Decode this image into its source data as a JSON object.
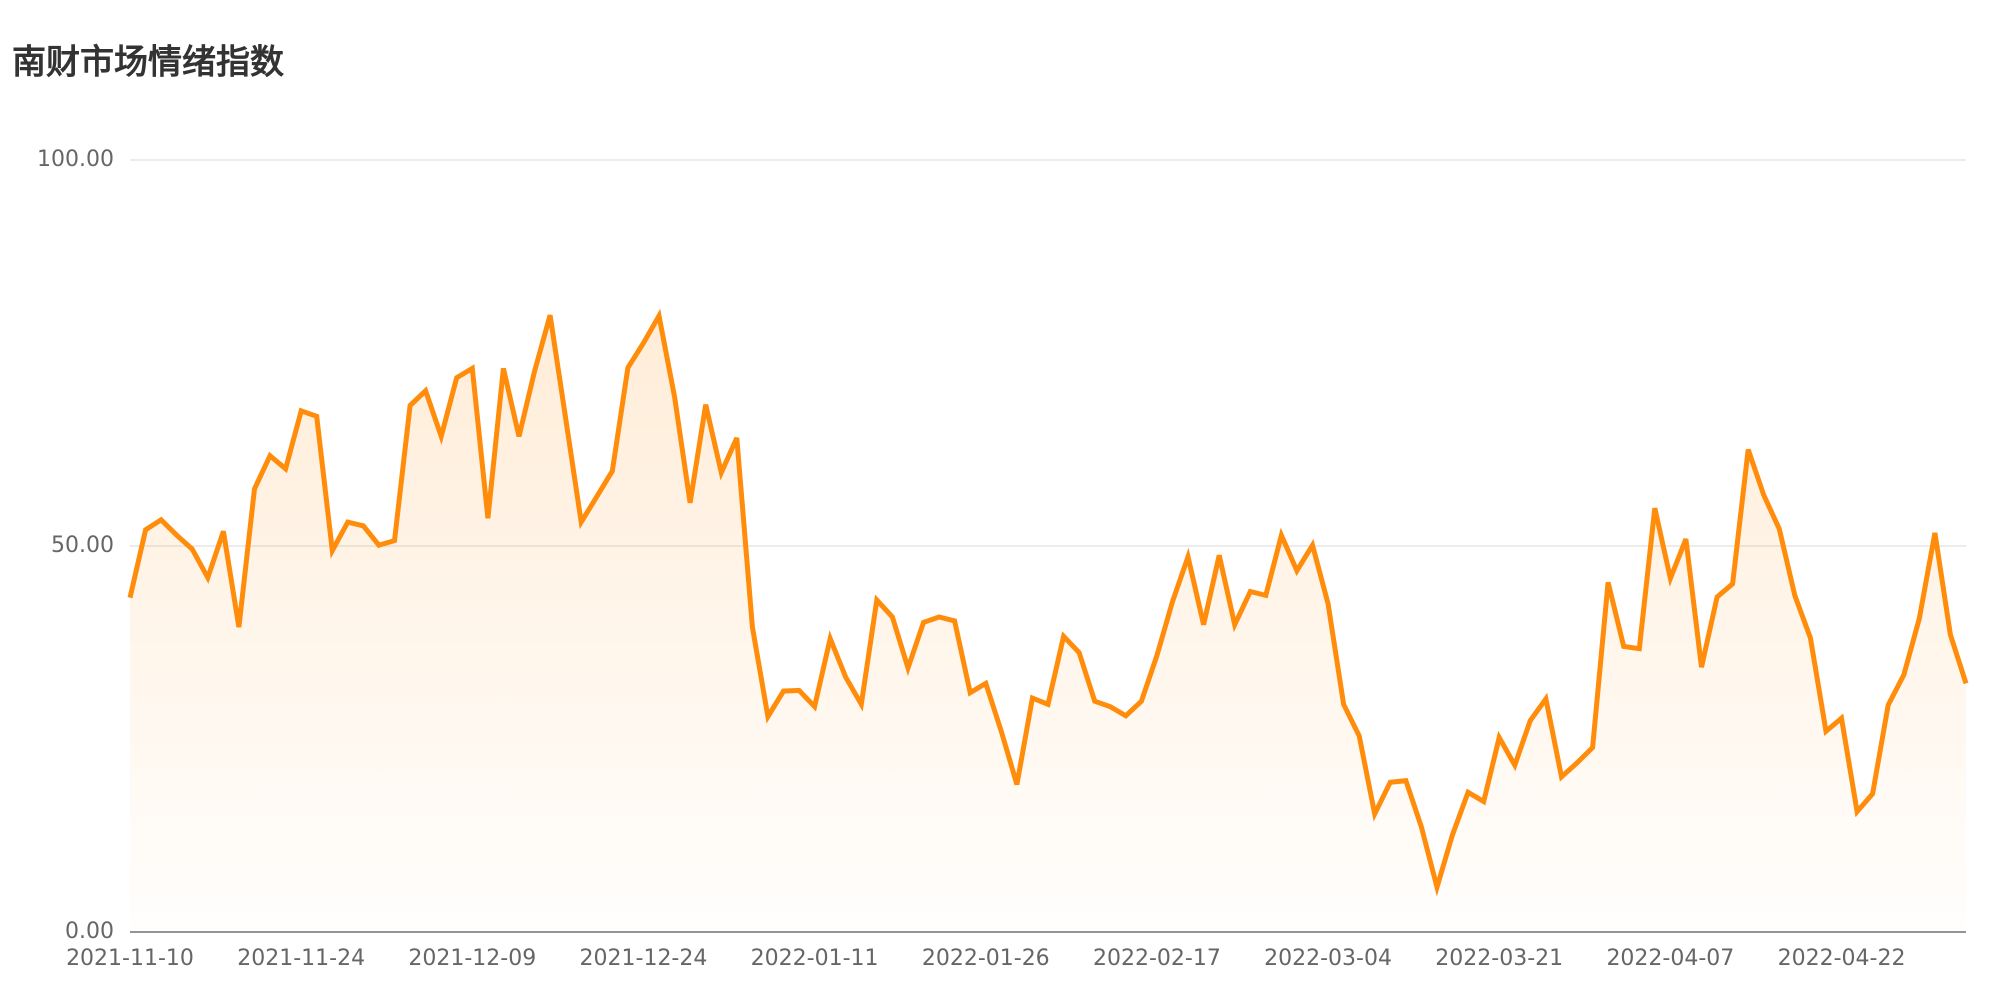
{
  "chart_data": {
    "type": "line",
    "title": "南财市场情绪指数",
    "color": "#ff8c0a",
    "grid": true,
    "categories": [
      "2021-11-10",
      null,
      null,
      null,
      null,
      null,
      null,
      null,
      null,
      null,
      null,
      "2021-11-24",
      null,
      null,
      null,
      null,
      null,
      null,
      null,
      null,
      null,
      null,
      "2021-12-09",
      null,
      null,
      null,
      null,
      null,
      null,
      null,
      null,
      null,
      null,
      "2021-12-24",
      null,
      null,
      null,
      null,
      null,
      null,
      null,
      null,
      null,
      null,
      "2022-01-11",
      null,
      null,
      null,
      null,
      null,
      null,
      null,
      null,
      null,
      null,
      "2022-01-26",
      null,
      null,
      null,
      null,
      null,
      null,
      null,
      null,
      null,
      null,
      "2022-02-17",
      null,
      null,
      null,
      null,
      null,
      null,
      null,
      null,
      null,
      null,
      "2022-03-04",
      null,
      null,
      null,
      null,
      null,
      null,
      null,
      null,
      null,
      null,
      "2022-03-21",
      null,
      null,
      null,
      null,
      null,
      null,
      null,
      null,
      null,
      null,
      "2022-04-07",
      null,
      null,
      null,
      null,
      null,
      null,
      null,
      null,
      null,
      null,
      "2022-04-22",
      null,
      null,
      null,
      null,
      null,
      null,
      null,
      null
    ],
    "values": [
      43.3,
      52.1,
      53.4,
      51.4,
      49.6,
      45.9,
      51.9,
      39.5,
      57.4,
      61.7,
      60.0,
      67.5,
      66.8,
      49.4,
      53.1,
      52.6,
      50.1,
      50.7,
      68.2,
      70.1,
      64.2,
      71.8,
      73.0,
      53.6,
      73.0,
      64.2,
      72.6,
      79.9,
      66.5,
      53.1,
      56.4,
      59.7,
      73.1,
      76.3,
      79.8,
      69.3,
      55.6,
      68.3,
      59.5,
      64.0,
      39.5,
      27.9,
      31.2,
      31.3,
      29.2,
      38.0,
      33.0,
      29.5,
      43.0,
      40.8,
      34.2,
      40.1,
      40.8,
      40.3,
      31.0,
      32.2,
      26.0,
      19.1,
      30.3,
      29.5,
      38.3,
      36.2,
      29.9,
      29.2,
      28.0,
      29.9,
      35.8,
      42.8,
      48.6,
      39.8,
      48.8,
      39.8,
      44.1,
      43.6,
      51.4,
      46.8,
      50.1,
      42.5,
      29.5,
      25.4,
      15.3,
      19.4,
      19.6,
      13.6,
      5.8,
      12.6,
      18.1,
      16.9,
      25.2,
      21.6,
      27.4,
      30.2,
      20.1,
      21.9,
      23.9,
      45.3,
      37.0,
      36.7,
      54.9,
      45.8,
      50.9,
      34.3,
      43.4,
      45.1,
      62.5,
      56.6,
      52.2,
      43.6,
      38.1,
      26.0,
      27.7,
      15.6,
      17.9,
      29.4,
      33.3,
      40.6,
      51.7,
      38.5,
      32.2
    ],
    "ylim": [
      0,
      100
    ],
    "yticks": [
      {
        "value": 0,
        "label": "0.00"
      },
      {
        "value": 50,
        "label": "50.00"
      },
      {
        "value": 100,
        "label": "100.00"
      }
    ]
  }
}
